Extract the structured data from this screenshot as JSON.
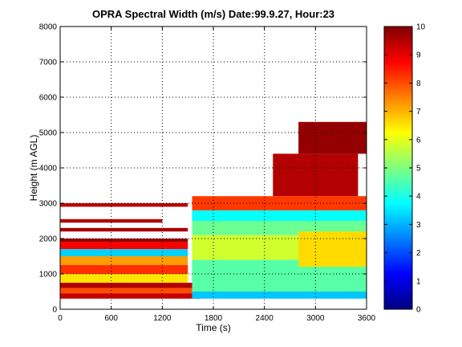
{
  "chart_data": {
    "type": "heatmap",
    "title": "OPRA Spectral Width (m/s)  Date:99.9.27, Hour:23",
    "xlabel": "Time (s)",
    "ylabel": "Height (m AGL)",
    "xlim": [
      0,
      3600
    ],
    "ylim": [
      0,
      8000
    ],
    "x_ticks": [
      "0",
      "600",
      "1200",
      "1800",
      "2400",
      "3000",
      "3600"
    ],
    "y_ticks": [
      "0",
      "1000",
      "2000",
      "3000",
      "4000",
      "5000",
      "6000",
      "7000",
      "8000"
    ],
    "grid": true,
    "colorbar": {
      "colormap": "jet",
      "range": [
        0,
        10
      ],
      "ticks": [
        "0",
        "1",
        "2",
        "3",
        "4",
        "5",
        "6",
        "7",
        "8",
        "9",
        "10"
      ]
    },
    "regions": [
      {
        "x": [
          0,
          1500
        ],
        "y": [
          1900,
          2000
        ],
        "value": 9.8
      },
      {
        "x": [
          0,
          1500
        ],
        "y": [
          2200,
          2300
        ],
        "value": 9.6
      },
      {
        "x": [
          0,
          1200
        ],
        "y": [
          2450,
          2550
        ],
        "value": 9.5
      },
      {
        "x": [
          0,
          1500
        ],
        "y": [
          2900,
          3000
        ],
        "value": 9.4
      },
      {
        "x": [
          0,
          1500
        ],
        "y": [
          1700,
          1900
        ],
        "value": 8.8
      },
      {
        "x": [
          0,
          1500
        ],
        "y": [
          1500,
          1700
        ],
        "value": 3.3
      },
      {
        "x": [
          0,
          1500
        ],
        "y": [
          1250,
          1500
        ],
        "value": 7.2
      },
      {
        "x": [
          0,
          1500
        ],
        "y": [
          1000,
          1250
        ],
        "value": 8.3
      },
      {
        "x": [
          0,
          1500
        ],
        "y": [
          750,
          1000
        ],
        "value": 6.5
      },
      {
        "x": [
          0,
          1650
        ],
        "y": [
          600,
          750
        ],
        "value": 9.5
      },
      {
        "x": [
          0,
          1600
        ],
        "y": [
          450,
          600
        ],
        "value": 8.0
      },
      {
        "x": [
          0,
          1650
        ],
        "y": [
          300,
          450
        ],
        "value": 9.3
      },
      {
        "x": [
          1550,
          3600
        ],
        "y": [
          300,
          500
        ],
        "value": 3.2
      },
      {
        "x": [
          1550,
          3600
        ],
        "y": [
          500,
          1400
        ],
        "value": 4.6
      },
      {
        "x": [
          1550,
          3600
        ],
        "y": [
          1400,
          2100
        ],
        "value": 5.8
      },
      {
        "x": [
          1550,
          3600
        ],
        "y": [
          2100,
          2500
        ],
        "value": 4.8
      },
      {
        "x": [
          1550,
          3600
        ],
        "y": [
          2500,
          2800
        ],
        "value": 3.8
      },
      {
        "x": [
          1550,
          3600
        ],
        "y": [
          2800,
          3200
        ],
        "value": 8.2
      },
      {
        "x": [
          2800,
          3600
        ],
        "y": [
          1200,
          2200
        ],
        "value": 6.6
      },
      {
        "x": [
          2500,
          3500
        ],
        "y": [
          3200,
          4400
        ],
        "value": 9.5
      },
      {
        "x": [
          2800,
          3600
        ],
        "y": [
          4400,
          5300
        ],
        "value": 9.8
      }
    ]
  }
}
